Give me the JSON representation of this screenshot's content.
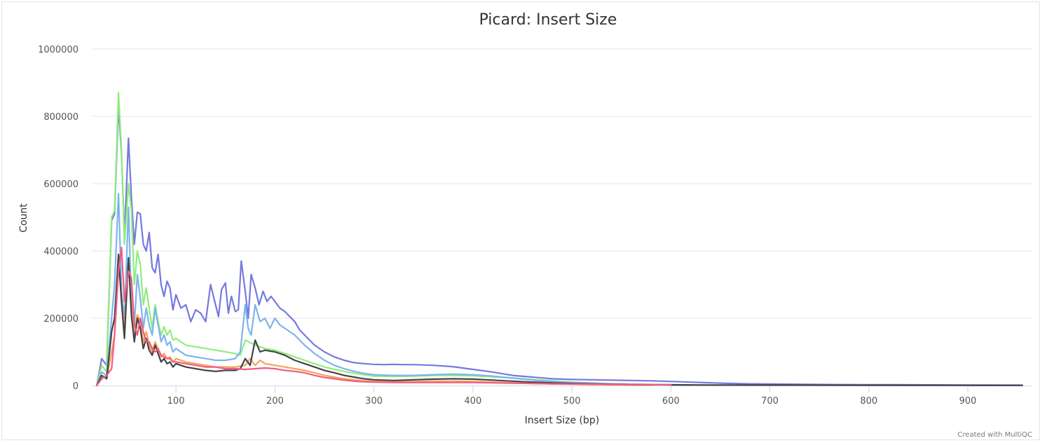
{
  "chart_data": {
    "type": "line",
    "title": "Picard: Insert Size",
    "xlabel": "Insert Size (bp)",
    "ylabel": "Count",
    "credit": "Created with MultiQC",
    "xlim": [
      15,
      965
    ],
    "ylim": [
      0,
      1000000
    ],
    "x_ticks": [
      100,
      200,
      300,
      400,
      500,
      600,
      700,
      800,
      900
    ],
    "y_ticks": [
      0,
      200000,
      400000,
      600000,
      800000,
      1000000
    ],
    "grid": "horizontal",
    "legend": "none",
    "series": [
      {
        "color": "#7479e0",
        "x": [
          20,
          25,
          30,
          35,
          38,
          42,
          45,
          48,
          52,
          55,
          58,
          61,
          64,
          67,
          70,
          73,
          76,
          79,
          82,
          85,
          88,
          91,
          94,
          97,
          100,
          105,
          110,
          115,
          120,
          125,
          130,
          135,
          140,
          143,
          146,
          150,
          153,
          156,
          160,
          163,
          166,
          170,
          173,
          176,
          180,
          184,
          188,
          192,
          196,
          200,
          205,
          210,
          215,
          220,
          225,
          230,
          240,
          250,
          260,
          270,
          280,
          290,
          300,
          310,
          320,
          330,
          340,
          350,
          360,
          380,
          400,
          420,
          440,
          460,
          480,
          500,
          520,
          540,
          560,
          580,
          600,
          620,
          650,
          680,
          720,
          760,
          800,
          850,
          900,
          955
        ],
        "y": [
          0,
          80000,
          60000,
          490000,
          510000,
          830000,
          690000,
          440000,
          735000,
          560000,
          420000,
          515000,
          510000,
          420000,
          400000,
          455000,
          350000,
          335000,
          390000,
          300000,
          265000,
          310000,
          290000,
          225000,
          270000,
          230000,
          240000,
          190000,
          225000,
          215000,
          190000,
          300000,
          240000,
          205000,
          285000,
          305000,
          215000,
          265000,
          220000,
          225000,
          370000,
          280000,
          200000,
          330000,
          290000,
          240000,
          280000,
          250000,
          265000,
          250000,
          230000,
          220000,
          205000,
          190000,
          165000,
          150000,
          120000,
          100000,
          85000,
          75000,
          68000,
          65000,
          63000,
          62000,
          63000,
          62000,
          62000,
          61000,
          60000,
          56000,
          48000,
          40000,
          30000,
          25000,
          20000,
          18000,
          17000,
          16000,
          15000,
          14000,
          12000,
          10000,
          7000,
          5000,
          4000,
          3000,
          2500,
          2000,
          1500,
          1000
        ]
      },
      {
        "color": "#90ed7d",
        "x": [
          20,
          25,
          30,
          35,
          38,
          42,
          45,
          48,
          52,
          55,
          58,
          61,
          64,
          67,
          70,
          73,
          76,
          79,
          82,
          85,
          88,
          91,
          94,
          97,
          100,
          110,
          120,
          130,
          140,
          150,
          160,
          165,
          170,
          180,
          190,
          200,
          210,
          220,
          230,
          240,
          250,
          260,
          270,
          280,
          290,
          300,
          320,
          340,
          360,
          380,
          400,
          420,
          440,
          460,
          480,
          500,
          520,
          540,
          560,
          580,
          600,
          620
        ],
        "y": [
          0,
          60000,
          40000,
          500000,
          520000,
          870000,
          700000,
          420000,
          600000,
          520000,
          300000,
          400000,
          360000,
          240000,
          290000,
          230000,
          170000,
          240000,
          190000,
          150000,
          175000,
          150000,
          165000,
          135000,
          140000,
          120000,
          115000,
          110000,
          105000,
          100000,
          95000,
          90000,
          135000,
          120000,
          110000,
          105000,
          95000,
          85000,
          75000,
          65000,
          55000,
          48000,
          42000,
          36000,
          32000,
          28000,
          27000,
          28000,
          30000,
          30000,
          29000,
          26000,
          22000,
          18000,
          14000,
          10000,
          7000,
          5000,
          4000,
          3000,
          2000,
          1000
        ]
      },
      {
        "color": "#7cb5ec",
        "x": [
          20,
          25,
          30,
          35,
          38,
          42,
          45,
          48,
          52,
          55,
          58,
          61,
          64,
          67,
          70,
          73,
          76,
          79,
          82,
          85,
          88,
          91,
          94,
          97,
          100,
          110,
          120,
          130,
          140,
          150,
          160,
          165,
          170,
          173,
          176,
          180,
          185,
          190,
          195,
          200,
          205,
          210,
          220,
          230,
          240,
          250,
          260,
          270,
          280,
          290,
          300,
          320,
          340,
          360,
          380,
          400,
          420,
          440,
          460,
          480,
          500,
          520,
          540,
          560,
          580,
          600,
          620
        ],
        "y": [
          0,
          40000,
          30000,
          200000,
          300000,
          570000,
          280000,
          200000,
          530000,
          250000,
          180000,
          330000,
          260000,
          170000,
          230000,
          180000,
          150000,
          230000,
          180000,
          130000,
          150000,
          120000,
          130000,
          100000,
          110000,
          90000,
          85000,
          80000,
          75000,
          75000,
          80000,
          100000,
          240000,
          170000,
          150000,
          240000,
          190000,
          200000,
          170000,
          200000,
          180000,
          170000,
          150000,
          120000,
          95000,
          75000,
          60000,
          50000,
          42000,
          36000,
          32000,
          30000,
          30000,
          32000,
          34000,
          32000,
          28000,
          22000,
          16000,
          12000,
          9000,
          7000,
          5000,
          4000,
          3000,
          2000,
          1000
        ]
      },
      {
        "color": "#f7a35c",
        "x": [
          20,
          25,
          30,
          35,
          38,
          42,
          45,
          48,
          52,
          55,
          58,
          61,
          64,
          67,
          70,
          73,
          76,
          79,
          82,
          85,
          88,
          91,
          94,
          97,
          100,
          110,
          120,
          130,
          140,
          150,
          160,
          170,
          175,
          180,
          185,
          190,
          200,
          210,
          220,
          230,
          240,
          250,
          260,
          270,
          280,
          290,
          300,
          320,
          340,
          360,
          380,
          400,
          420,
          440,
          460,
          480,
          500,
          520,
          540,
          560,
          580
        ],
        "y": [
          0,
          30000,
          20000,
          100000,
          150000,
          380000,
          250000,
          170000,
          370000,
          230000,
          150000,
          210000,
          190000,
          130000,
          160000,
          120000,
          100000,
          130000,
          110000,
          85000,
          95000,
          80000,
          85000,
          70000,
          80000,
          70000,
          65000,
          60000,
          55000,
          55000,
          55000,
          60000,
          80000,
          60000,
          75000,
          65000,
          60000,
          55000,
          50000,
          45000,
          38000,
          30000,
          25000,
          20000,
          17000,
          14000,
          13000,
          12000,
          12000,
          13000,
          13000,
          12000,
          10000,
          8000,
          6000,
          5000,
          4000,
          3000,
          2000,
          1500,
          1000
        ]
      },
      {
        "color": "#434348",
        "x": [
          20,
          25,
          30,
          35,
          38,
          42,
          45,
          48,
          52,
          55,
          58,
          61,
          64,
          67,
          70,
          73,
          76,
          79,
          82,
          85,
          88,
          91,
          94,
          97,
          100,
          110,
          120,
          130,
          140,
          150,
          160,
          165,
          170,
          175,
          180,
          185,
          190,
          200,
          210,
          220,
          230,
          240,
          250,
          260,
          270,
          280,
          290,
          300,
          320,
          340,
          360,
          380,
          400,
          420,
          440,
          460,
          480,
          500,
          520,
          540,
          560,
          580,
          600,
          640,
          700,
          760,
          820,
          880,
          955
        ],
        "y": [
          0,
          30000,
          20000,
          160000,
          200000,
          390000,
          250000,
          140000,
          380000,
          210000,
          130000,
          200000,
          170000,
          110000,
          140000,
          105000,
          90000,
          120000,
          95000,
          70000,
          80000,
          65000,
          70000,
          55000,
          65000,
          55000,
          50000,
          45000,
          42000,
          45000,
          45000,
          50000,
          80000,
          60000,
          135000,
          100000,
          105000,
          100000,
          90000,
          75000,
          65000,
          55000,
          45000,
          38000,
          30000,
          25000,
          20000,
          17000,
          15000,
          17000,
          19000,
          20000,
          19000,
          16000,
          13000,
          10000,
          8000,
          6000,
          5000,
          4000,
          3000,
          2500,
          2000,
          1500,
          1200,
          1000,
          800,
          600,
          500
        ]
      },
      {
        "color": "#f15c80",
        "x": [
          20,
          25,
          30,
          35,
          38,
          42,
          45,
          48,
          52,
          55,
          58,
          61,
          64,
          67,
          70,
          73,
          76,
          79,
          82,
          85,
          88,
          91,
          94,
          97,
          100,
          110,
          120,
          130,
          140,
          150,
          160,
          170,
          180,
          190,
          200,
          210,
          220,
          230,
          240,
          250,
          260,
          270,
          280,
          290,
          300,
          320,
          340,
          360,
          380,
          400,
          420,
          440,
          460,
          480,
          500,
          520,
          540,
          560,
          580,
          600
        ],
        "y": [
          0,
          20000,
          30000,
          50000,
          150000,
          340000,
          410000,
          250000,
          340000,
          320000,
          180000,
          150000,
          200000,
          160000,
          130000,
          130000,
          110000,
          100000,
          110000,
          90000,
          85000,
          80000,
          80000,
          70000,
          70000,
          65000,
          60000,
          55000,
          55000,
          50000,
          50000,
          48000,
          50000,
          52000,
          50000,
          45000,
          42000,
          38000,
          30000,
          24000,
          20000,
          16000,
          13000,
          11000,
          10000,
          9000,
          9000,
          9000,
          9000,
          9000,
          8000,
          7000,
          6000,
          5000,
          4500,
          4000,
          3500,
          3000,
          2500,
          2000
        ]
      }
    ]
  }
}
